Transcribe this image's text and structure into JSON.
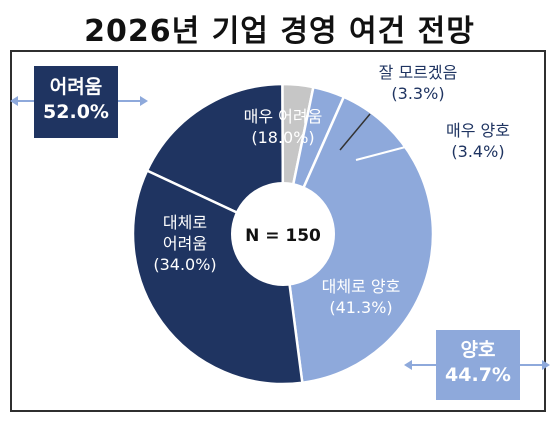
{
  "title": "2026년 기업 경영 여건 전망",
  "chart_data": {
    "type": "pie",
    "subtype": "donut",
    "center_label": "N = 150",
    "slices": [
      {
        "name": "매우 어려움",
        "value": 18.0,
        "label_value": "(18.0%)",
        "color": "#1f3461"
      },
      {
        "name": "잘 모르겠음",
        "value": 3.3,
        "label_value": "(3.3%)",
        "color": "#c6c6c6"
      },
      {
        "name": "매우 양호",
        "value": 3.4,
        "label_value": "(3.4%)",
        "color": "#8ea9db"
      },
      {
        "name": "대체로 양호",
        "value": 41.3,
        "label_value": "(41.3%)",
        "color": "#8ea9db"
      },
      {
        "name": "대체로 어려움",
        "value": 34.0,
        "label_value": "(34.0%)",
        "color": "#1f3461"
      }
    ],
    "groups": [
      {
        "name": "어려움",
        "value": "52.0%",
        "color": "#1f3461"
      },
      {
        "name": "양호",
        "value": "44.7%",
        "color": "#8ea9db"
      }
    ]
  },
  "labels": {
    "very_hard_name": "매우 어려움",
    "very_hard_value": "(18.0%)",
    "mostly_hard_line1": "대체로",
    "mostly_hard_line2": "어려움",
    "mostly_hard_value": "(34.0%)",
    "mostly_good_name": "대체로 양호",
    "mostly_good_value": "(41.3%)",
    "dont_know_name": "잘 모르겠음",
    "dont_know_value": "(3.3%)",
    "very_good_name": "매우 양호",
    "very_good_value": "(3.4%)"
  }
}
